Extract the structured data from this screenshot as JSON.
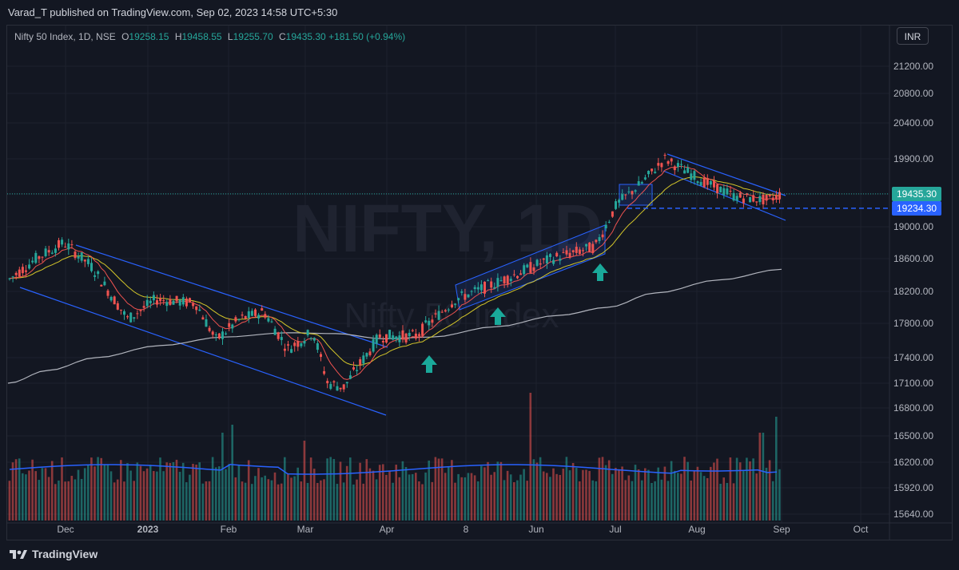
{
  "publisher": "Varad_T published on TradingView.com, Sep 02, 2023 14:58 UTC+5:30",
  "legend": {
    "symbol": "Nifty 50 Index, 1D, NSE",
    "o_label": "O",
    "o": "19258.15",
    "h_label": "H",
    "h": "19458.55",
    "l_label": "L",
    "l": "19255.70",
    "c_label": "C",
    "c": "19435.30",
    "change": "+181.50 (+0.94%)"
  },
  "currency_button": "INR",
  "watermark": {
    "line1": "NIFTY, 1D",
    "line2": "Nifty 50 Index"
  },
  "price_axis": [
    "21200.00",
    "20800.00",
    "20400.00",
    "19900.00",
    "19000.00",
    "18600.00",
    "18200.00",
    "17800.00",
    "17400.00",
    "17100.00",
    "16800.00",
    "16500.00",
    "16200.00",
    "15920.00",
    "15640.00"
  ],
  "price_tags": {
    "last": "19435.30",
    "level": "19234.30"
  },
  "time_axis": [
    "Dec",
    "2023",
    "Feb",
    "Mar",
    "Apr",
    "8",
    "Jun",
    "Jul",
    "Aug",
    "Sep",
    "Oct"
  ],
  "footer_brand": "TradingView",
  "colors": {
    "up": "#26a69a",
    "down": "#ef5350",
    "channel": "#2962ff",
    "ema_fast": "#ef5350",
    "ema_slow": "#d4c62a",
    "sma_long": "#b2b5be",
    "volume_ma": "#2962ff",
    "last_price": "#26a69a",
    "level": "#2962ff"
  },
  "chart_data": {
    "type": "candlestick",
    "symbol": "Nifty 50 Index",
    "interval": "1D",
    "y_range": [
      15640,
      21400
    ],
    "price_path": [
      {
        "x": "Nov 14",
        "p": 18350
      },
      {
        "x": "Nov 28",
        "p": 18600
      },
      {
        "x": "Dec 1",
        "p": 18800
      },
      {
        "x": "Dec 10",
        "p": 18500
      },
      {
        "x": "Dec 23",
        "p": 17850
      },
      {
        "x": "Jan 5",
        "p": 18100
      },
      {
        "x": "Jan 20",
        "p": 18050
      },
      {
        "x": "Jan 27",
        "p": 17600
      },
      {
        "x": "Feb 8",
        "p": 17850
      },
      {
        "x": "Feb 17",
        "p": 17950
      },
      {
        "x": "Mar 1",
        "p": 17500
      },
      {
        "x": "Mar 8",
        "p": 17700
      },
      {
        "x": "Mar 15",
        "p": 17100
      },
      {
        "x": "Mar 28",
        "p": 17050
      },
      {
        "x": "Apr 10",
        "p": 17650
      },
      {
        "x": "Apr 20",
        "p": 17650
      },
      {
        "x": "May 5",
        "p": 18100
      },
      {
        "x": "May 20",
        "p": 18300
      },
      {
        "x": "Jun 10",
        "p": 18600
      },
      {
        "x": "Jun 25",
        "p": 18750
      },
      {
        "x": "Jul 3",
        "p": 19300
      },
      {
        "x": "Jul 14",
        "p": 19550
      },
      {
        "x": "Jul 20",
        "p": 19900
      },
      {
        "x": "Aug 1",
        "p": 19600
      },
      {
        "x": "Aug 15",
        "p": 19400
      },
      {
        "x": "Aug 25",
        "p": 19350
      },
      {
        "x": "Sep 1",
        "p": 19435.3
      }
    ],
    "last_close": 19435.3,
    "marked_level": 19234.3,
    "indicators": [
      "EMA fast",
      "EMA slow",
      "SMA long",
      "Volume",
      "Volume MA"
    ],
    "annotations": [
      "descending channel Nov–Mar",
      "rising channel May–Jun",
      "descending channel Jul–Sep",
      "buy arrows Apr, May, Jun"
    ]
  }
}
